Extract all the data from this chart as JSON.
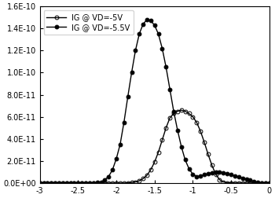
{
  "title": "",
  "xlabel": "",
  "ylabel": "",
  "xlim": [
    -3,
    0
  ],
  "ylim": [
    0,
    1.6e-10
  ],
  "xticks": [
    -3,
    -2.5,
    -2,
    -1.5,
    -1,
    -0.5,
    0
  ],
  "yticks": [
    0.0,
    2e-11,
    4e-11,
    6e-11,
    8e-11,
    1e-10,
    1.2e-10,
    1.4e-10,
    1.6e-10
  ],
  "ytick_labels": [
    "0.0E+00",
    "2.0E-11",
    "4.0E-11",
    "6.0E-11",
    "8.0E-11",
    "1.0E-10",
    "1.2E-10",
    "1.4E-10",
    "1.6E-10"
  ],
  "series": [
    {
      "label": "IG @ VD=-5V",
      "marker": "o",
      "fillstyle": "none",
      "color": "#000000",
      "linewidth": 1.0,
      "markersize": 3.5,
      "x": [
        -3.0,
        -2.95,
        -2.9,
        -2.85,
        -2.8,
        -2.75,
        -2.7,
        -2.65,
        -2.6,
        -2.55,
        -2.5,
        -2.45,
        -2.4,
        -2.35,
        -2.3,
        -2.25,
        -2.2,
        -2.15,
        -2.1,
        -2.05,
        -2.0,
        -1.95,
        -1.9,
        -1.85,
        -1.8,
        -1.75,
        -1.7,
        -1.65,
        -1.6,
        -1.55,
        -1.5,
        -1.45,
        -1.4,
        -1.35,
        -1.3,
        -1.25,
        -1.2,
        -1.15,
        -1.1,
        -1.05,
        -1.0,
        -0.95,
        -0.9,
        -0.85,
        -0.8,
        -0.75,
        -0.7,
        -0.65,
        -0.6,
        -0.55,
        -0.5,
        -0.45,
        -0.4,
        -0.35,
        -0.3,
        -0.25,
        -0.2,
        -0.15,
        -0.1,
        -0.05,
        0.0
      ],
      "y": [
        0,
        0,
        0,
        0,
        0,
        0,
        0,
        0,
        0,
        0,
        0,
        0,
        0,
        0,
        0,
        0,
        0,
        0,
        0,
        0,
        0,
        0,
        0,
        2e-13,
        5e-13,
        1e-12,
        2e-12,
        4e-12,
        7e-12,
        1.2e-11,
        1.9e-11,
        2.8e-11,
        3.9e-11,
        5e-11,
        5.9e-11,
        6.3e-11,
        6.5e-11,
        6.6e-11,
        6.5e-11,
        6.3e-11,
        6e-11,
        5.5e-11,
        4.7e-11,
        3.7e-11,
        2.6e-11,
        1.6e-11,
        8e-12,
        3e-12,
        1e-12,
        3e-13,
        1e-13,
        5e-14,
        2e-14,
        5e-15,
        2e-15,
        1e-15,
        0,
        0,
        0,
        0,
        0
      ]
    },
    {
      "label": "IG @ VD=-5.5V",
      "marker": "o",
      "fillstyle": "full",
      "color": "#000000",
      "linewidth": 1.0,
      "markersize": 3.5,
      "x": [
        -3.0,
        -2.95,
        -2.9,
        -2.85,
        -2.8,
        -2.75,
        -2.7,
        -2.65,
        -2.6,
        -2.55,
        -2.5,
        -2.45,
        -2.4,
        -2.35,
        -2.3,
        -2.25,
        -2.2,
        -2.15,
        -2.1,
        -2.05,
        -2.0,
        -1.95,
        -1.9,
        -1.85,
        -1.8,
        -1.75,
        -1.7,
        -1.65,
        -1.6,
        -1.55,
        -1.5,
        -1.45,
        -1.4,
        -1.35,
        -1.3,
        -1.25,
        -1.2,
        -1.15,
        -1.1,
        -1.05,
        -1.0,
        -0.95,
        -0.9,
        -0.85,
        -0.8,
        -0.75,
        -0.7,
        -0.65,
        -0.6,
        -0.55,
        -0.5,
        -0.45,
        -0.4,
        -0.35,
        -0.3,
        -0.25,
        -0.2,
        -0.15,
        -0.1,
        -0.05,
        0.0
      ],
      "y": [
        0,
        0,
        0,
        0,
        0,
        0,
        0,
        0,
        0,
        0,
        0,
        0,
        0,
        0,
        0,
        5e-13,
        1e-12,
        3e-12,
        6e-12,
        1.2e-11,
        2.2e-11,
        3.5e-11,
        5.5e-11,
        7.8e-11,
        1e-10,
        1.2e-10,
        1.35e-10,
        1.44e-10,
        1.48e-10,
        1.47e-10,
        1.43e-10,
        1.35e-10,
        1.22e-10,
        1.05e-10,
        8.5e-11,
        6.5e-11,
        4.8e-11,
        3.3e-11,
        2.1e-11,
        1.3e-11,
        8e-12,
        6e-12,
        6.5e-12,
        7.5e-12,
        8.5e-12,
        9.5e-12,
        1e-11,
        1e-11,
        9.5e-12,
        8.5e-12,
        7.5e-12,
        6.5e-12,
        5.5e-12,
        4.5e-12,
        3.5e-12,
        2.5e-12,
        1.5e-12,
        8e-13,
        3e-13,
        1e-13,
        0
      ]
    }
  ]
}
